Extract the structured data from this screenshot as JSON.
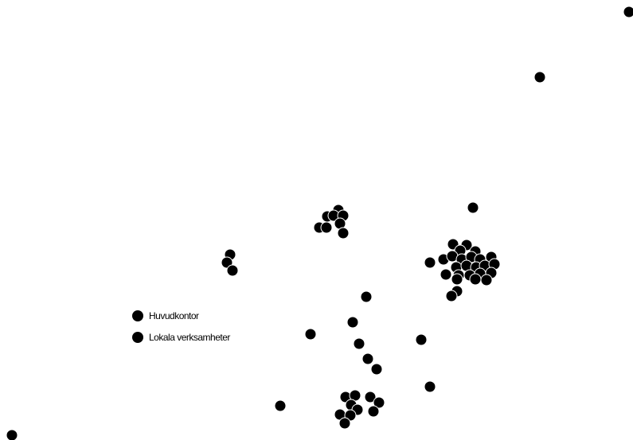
{
  "map": {
    "background": "#ffffff",
    "marker_color": "#000000",
    "marker_stroke": "#ffffff",
    "legend": {
      "items": [
        {
          "label": "Huvudkontor",
          "color": "#000000"
        },
        {
          "label": "Lokala verksamheter",
          "color": "#000000"
        }
      ]
    }
  }
}
